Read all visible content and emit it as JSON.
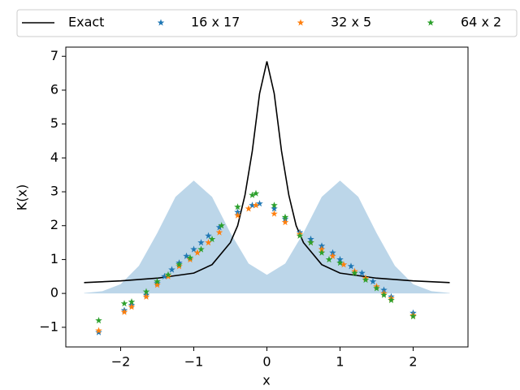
{
  "chart_data": {
    "type": "line",
    "xlabel": "x",
    "ylabel": "K(x)",
    "xlim": [
      -2.75,
      2.75
    ],
    "ylim": [
      -1.58,
      7.27
    ],
    "xticks": [
      {
        "value": -2,
        "label": "−2"
      },
      {
        "value": -1,
        "label": "−1"
      },
      0,
      1,
      2
    ],
    "yticks": [
      {
        "value": -1,
        "label": "−1"
      },
      0,
      1,
      2,
      3,
      4,
      5,
      6,
      7
    ],
    "legend": "top",
    "fill": {
      "color": "#bcd6e9",
      "x": [
        -2.5,
        -2.25,
        -2,
        -1.75,
        -1.5,
        -1.25,
        -1,
        -0.75,
        -0.5,
        -0.25,
        0,
        0.25,
        0.5,
        0.75,
        1,
        1.25,
        1.5,
        1.75,
        2,
        2.25,
        2.5
      ],
      "values": [
        0.012,
        0.067,
        0.273,
        0.816,
        1.78,
        2.85,
        3.33,
        2.85,
        1.79,
        0.88,
        0.55,
        0.88,
        1.79,
        2.85,
        3.33,
        2.85,
        1.78,
        0.816,
        0.273,
        0.067,
        0.012
      ]
    },
    "series": [
      {
        "name": "Exact",
        "style": "line",
        "color": "#000000",
        "x": [
          -2.5,
          -2,
          -1.5,
          -1,
          -0.75,
          -0.5,
          -0.4,
          -0.3,
          -0.2,
          -0.1,
          0,
          0.1,
          0.2,
          0.3,
          0.4,
          0.5,
          0.75,
          1,
          1.5,
          2,
          2.5
        ],
        "values": [
          0.32,
          0.37,
          0.45,
          0.6,
          0.85,
          1.5,
          2.0,
          2.9,
          4.2,
          5.9,
          6.85,
          5.9,
          4.2,
          2.9,
          2.0,
          1.5,
          0.85,
          0.6,
          0.45,
          0.37,
          0.32
        ]
      },
      {
        "name": "16 x 17",
        "style": "star",
        "color": "#1f77b4",
        "x": [
          -2.3,
          -1.95,
          -1.85,
          -1.65,
          -1.5,
          -1.4,
          -1.3,
          -1.2,
          -1.1,
          -1.0,
          -0.9,
          -0.8,
          -0.65,
          -0.4,
          -0.2,
          -0.1,
          0.1,
          0.25,
          0.45,
          0.6,
          0.75,
          0.9,
          1.0,
          1.15,
          1.3,
          1.45,
          1.6,
          1.7,
          2.0
        ],
        "values": [
          -1.15,
          -0.5,
          -0.35,
          -0.05,
          0.3,
          0.5,
          0.7,
          0.9,
          1.1,
          1.3,
          1.5,
          1.7,
          1.95,
          2.4,
          2.6,
          2.65,
          2.5,
          2.2,
          1.8,
          1.6,
          1.4,
          1.2,
          1.0,
          0.8,
          0.6,
          0.35,
          0.1,
          -0.1,
          -0.58
        ]
      },
      {
        "name": "32 x 5",
        "style": "star",
        "color": "#ff7f0e",
        "x": [
          -2.3,
          -1.95,
          -1.85,
          -1.65,
          -1.5,
          -1.35,
          -1.2,
          -1.05,
          -0.95,
          -0.8,
          -0.65,
          -0.4,
          -0.25,
          -0.15,
          0.1,
          0.25,
          0.45,
          0.6,
          0.75,
          0.9,
          1.05,
          1.2,
          1.35,
          1.5,
          1.6,
          1.7,
          2.0
        ],
        "values": [
          -1.1,
          -0.55,
          -0.4,
          -0.1,
          0.25,
          0.5,
          0.8,
          1.0,
          1.2,
          1.5,
          1.8,
          2.3,
          2.5,
          2.6,
          2.35,
          2.1,
          1.75,
          1.5,
          1.3,
          1.1,
          0.85,
          0.65,
          0.45,
          0.2,
          0.0,
          -0.15,
          -0.65
        ]
      },
      {
        "name": "64 x 2",
        "style": "star",
        "color": "#2ca02c",
        "x": [
          -2.3,
          -1.95,
          -1.85,
          -1.65,
          -1.5,
          -1.35,
          -1.2,
          -1.05,
          -0.9,
          -0.75,
          -0.62,
          -0.4,
          -0.2,
          -0.15,
          0.1,
          0.25,
          0.45,
          0.6,
          0.75,
          0.85,
          1.0,
          1.2,
          1.35,
          1.5,
          1.6,
          1.7,
          2.0
        ],
        "values": [
          -0.8,
          -0.3,
          -0.25,
          0.05,
          0.35,
          0.55,
          0.85,
          1.05,
          1.3,
          1.6,
          2.0,
          2.55,
          2.9,
          2.95,
          2.6,
          2.25,
          1.7,
          1.5,
          1.2,
          1.0,
          0.9,
          0.6,
          0.4,
          0.15,
          -0.05,
          -0.2,
          -0.68
        ]
      }
    ]
  }
}
